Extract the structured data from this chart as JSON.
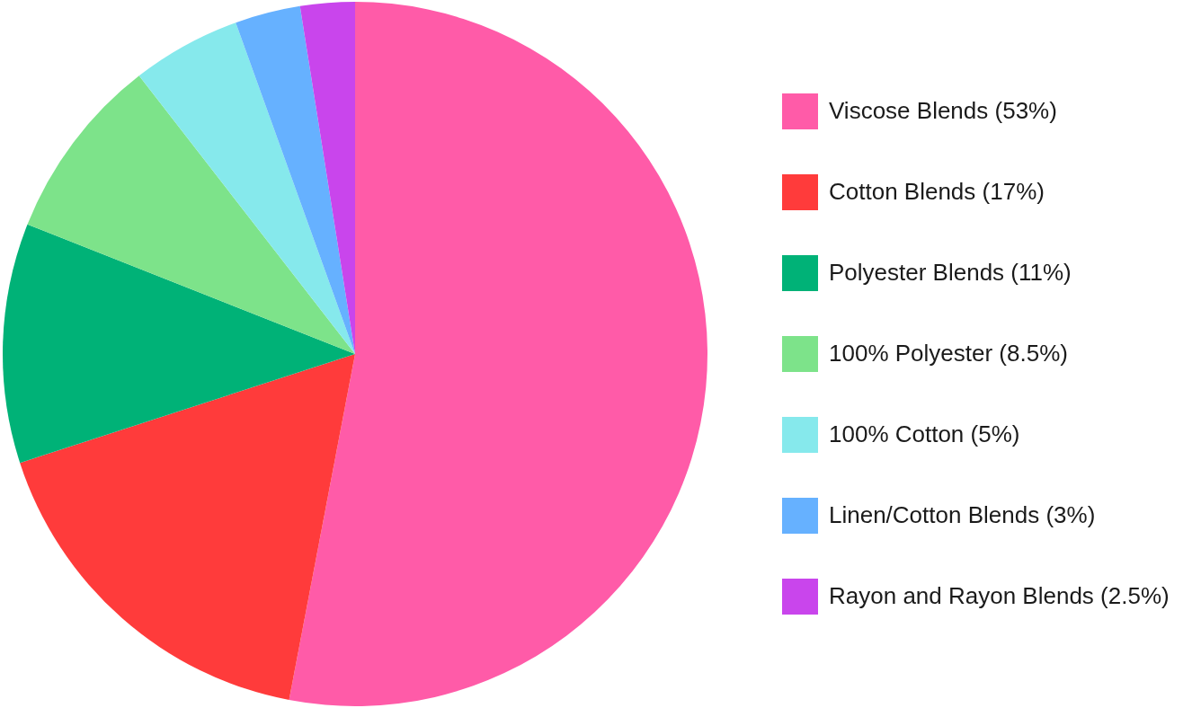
{
  "chart_data": {
    "type": "pie",
    "categories": [
      "Viscose Blends (53%)",
      "Cotton Blends (17%)",
      "Polyester Blends (11%)",
      "100% Polyester (8.5%)",
      "100% Cotton (5%)",
      "Linen/Cotton Blends (3%)",
      "Rayon and Rayon Blends (2.5%)"
    ],
    "values": [
      53,
      17,
      11,
      8.5,
      5,
      3,
      2.5
    ],
    "colors": [
      "#ff5ba8",
      "#ff3b3b",
      "#00b277",
      "#7de38a",
      "#86e9ec",
      "#66b1ff",
      "#c945ec"
    ],
    "legend": "right"
  }
}
